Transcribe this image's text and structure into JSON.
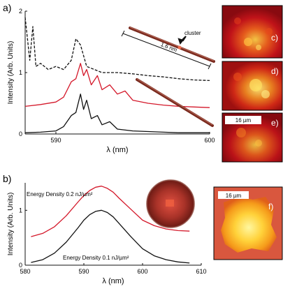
{
  "colors": {
    "red": "#d4182a",
    "black": "#111111",
    "rod": "#7a2a1e"
  },
  "panels": {
    "a": "a)",
    "b": "b)",
    "c": "c)",
    "d": "d)",
    "e": "e)",
    "f": "f)"
  },
  "annotations": {
    "cluster": "cluster",
    "rod_length": "1.6 nm",
    "scale_e": "16 µm",
    "scale_f": "16 µm",
    "energy_high": "Energy Density 0.2 nJ/µm²",
    "energy_low": "Energy Density 0.1 nJ/µm²"
  },
  "chart_data": [
    {
      "type": "line",
      "panel": "a",
      "xlabel": "λ (nm)",
      "ylabel": "Intensity (Arb. Units)",
      "xlim": [
        588,
        600
      ],
      "ylim": [
        0,
        2
      ],
      "xticks": [
        590,
        600
      ],
      "yticks": [
        0,
        1,
        2
      ],
      "series": [
        {
          "style": "dashed",
          "color": "#111111",
          "x": [
            588,
            588.3,
            588.5,
            588.7,
            589,
            589.5,
            590,
            590.5,
            591,
            591.3,
            591.6,
            592,
            592.5,
            593,
            594,
            595,
            596,
            597,
            598,
            599,
            600
          ],
          "y": [
            1.9,
            1.2,
            1.75,
            1.1,
            1.15,
            1.05,
            1.1,
            1.05,
            1.2,
            1.55,
            1.45,
            1.1,
            1.05,
            1.0,
            1.0,
            0.98,
            0.95,
            0.93,
            0.9,
            0.88,
            0.87
          ]
        },
        {
          "style": "solid",
          "color": "#d4182a",
          "x": [
            588,
            589,
            590,
            590.5,
            591,
            591.3,
            591.6,
            591.8,
            592,
            592.3,
            592.7,
            593,
            593.5,
            594,
            594.5,
            595,
            596,
            597,
            598,
            599,
            600
          ],
          "y": [
            0.45,
            0.48,
            0.52,
            0.6,
            0.85,
            0.9,
            1.15,
            0.95,
            1.05,
            0.8,
            0.95,
            0.72,
            0.8,
            0.65,
            0.7,
            0.55,
            0.5,
            0.47,
            0.45,
            0.44,
            0.43
          ]
        },
        {
          "style": "solid",
          "color": "#111111",
          "x": [
            588,
            589,
            590,
            590.5,
            591,
            591.3,
            591.6,
            591.8,
            592,
            592.3,
            592.7,
            593,
            593.5,
            594,
            595,
            596,
            597,
            598,
            599,
            600
          ],
          "y": [
            0.02,
            0.03,
            0.05,
            0.12,
            0.3,
            0.35,
            0.65,
            0.4,
            0.55,
            0.25,
            0.3,
            0.15,
            0.2,
            0.08,
            0.05,
            0.04,
            0.03,
            0.02,
            0.02,
            0.02
          ]
        }
      ]
    },
    {
      "type": "line",
      "panel": "b",
      "xlabel": "λ (nm)",
      "ylabel": "Intensity (Arb. Units)",
      "xlim": [
        580,
        610
      ],
      "ylim": [
        0,
        1.5
      ],
      "xticks": [
        580,
        590,
        600,
        610
      ],
      "yticks": [
        0,
        1
      ],
      "series": [
        {
          "name": "Energy Density 0.2 nJ/µm²",
          "color": "#d4182a",
          "x": [
            581,
            583,
            585,
            587,
            589,
            590,
            591,
            592,
            593,
            594,
            595,
            596,
            598,
            600,
            602,
            604,
            606,
            608
          ],
          "y": [
            0.52,
            0.58,
            0.7,
            0.9,
            1.15,
            1.27,
            1.36,
            1.42,
            1.44,
            1.4,
            1.33,
            1.22,
            1.02,
            0.82,
            0.72,
            0.66,
            0.63,
            0.62
          ]
        },
        {
          "name": "Energy Density 0.1 nJ/µm²",
          "color": "#111111",
          "x": [
            581,
            583,
            585,
            587,
            589,
            590,
            591,
            592,
            593,
            594,
            595,
            596,
            598,
            600,
            602,
            604,
            606,
            608
          ],
          "y": [
            0.05,
            0.1,
            0.22,
            0.42,
            0.68,
            0.82,
            0.92,
            0.98,
            1.0,
            0.96,
            0.88,
            0.76,
            0.52,
            0.3,
            0.17,
            0.1,
            0.06,
            0.04
          ]
        }
      ]
    }
  ]
}
